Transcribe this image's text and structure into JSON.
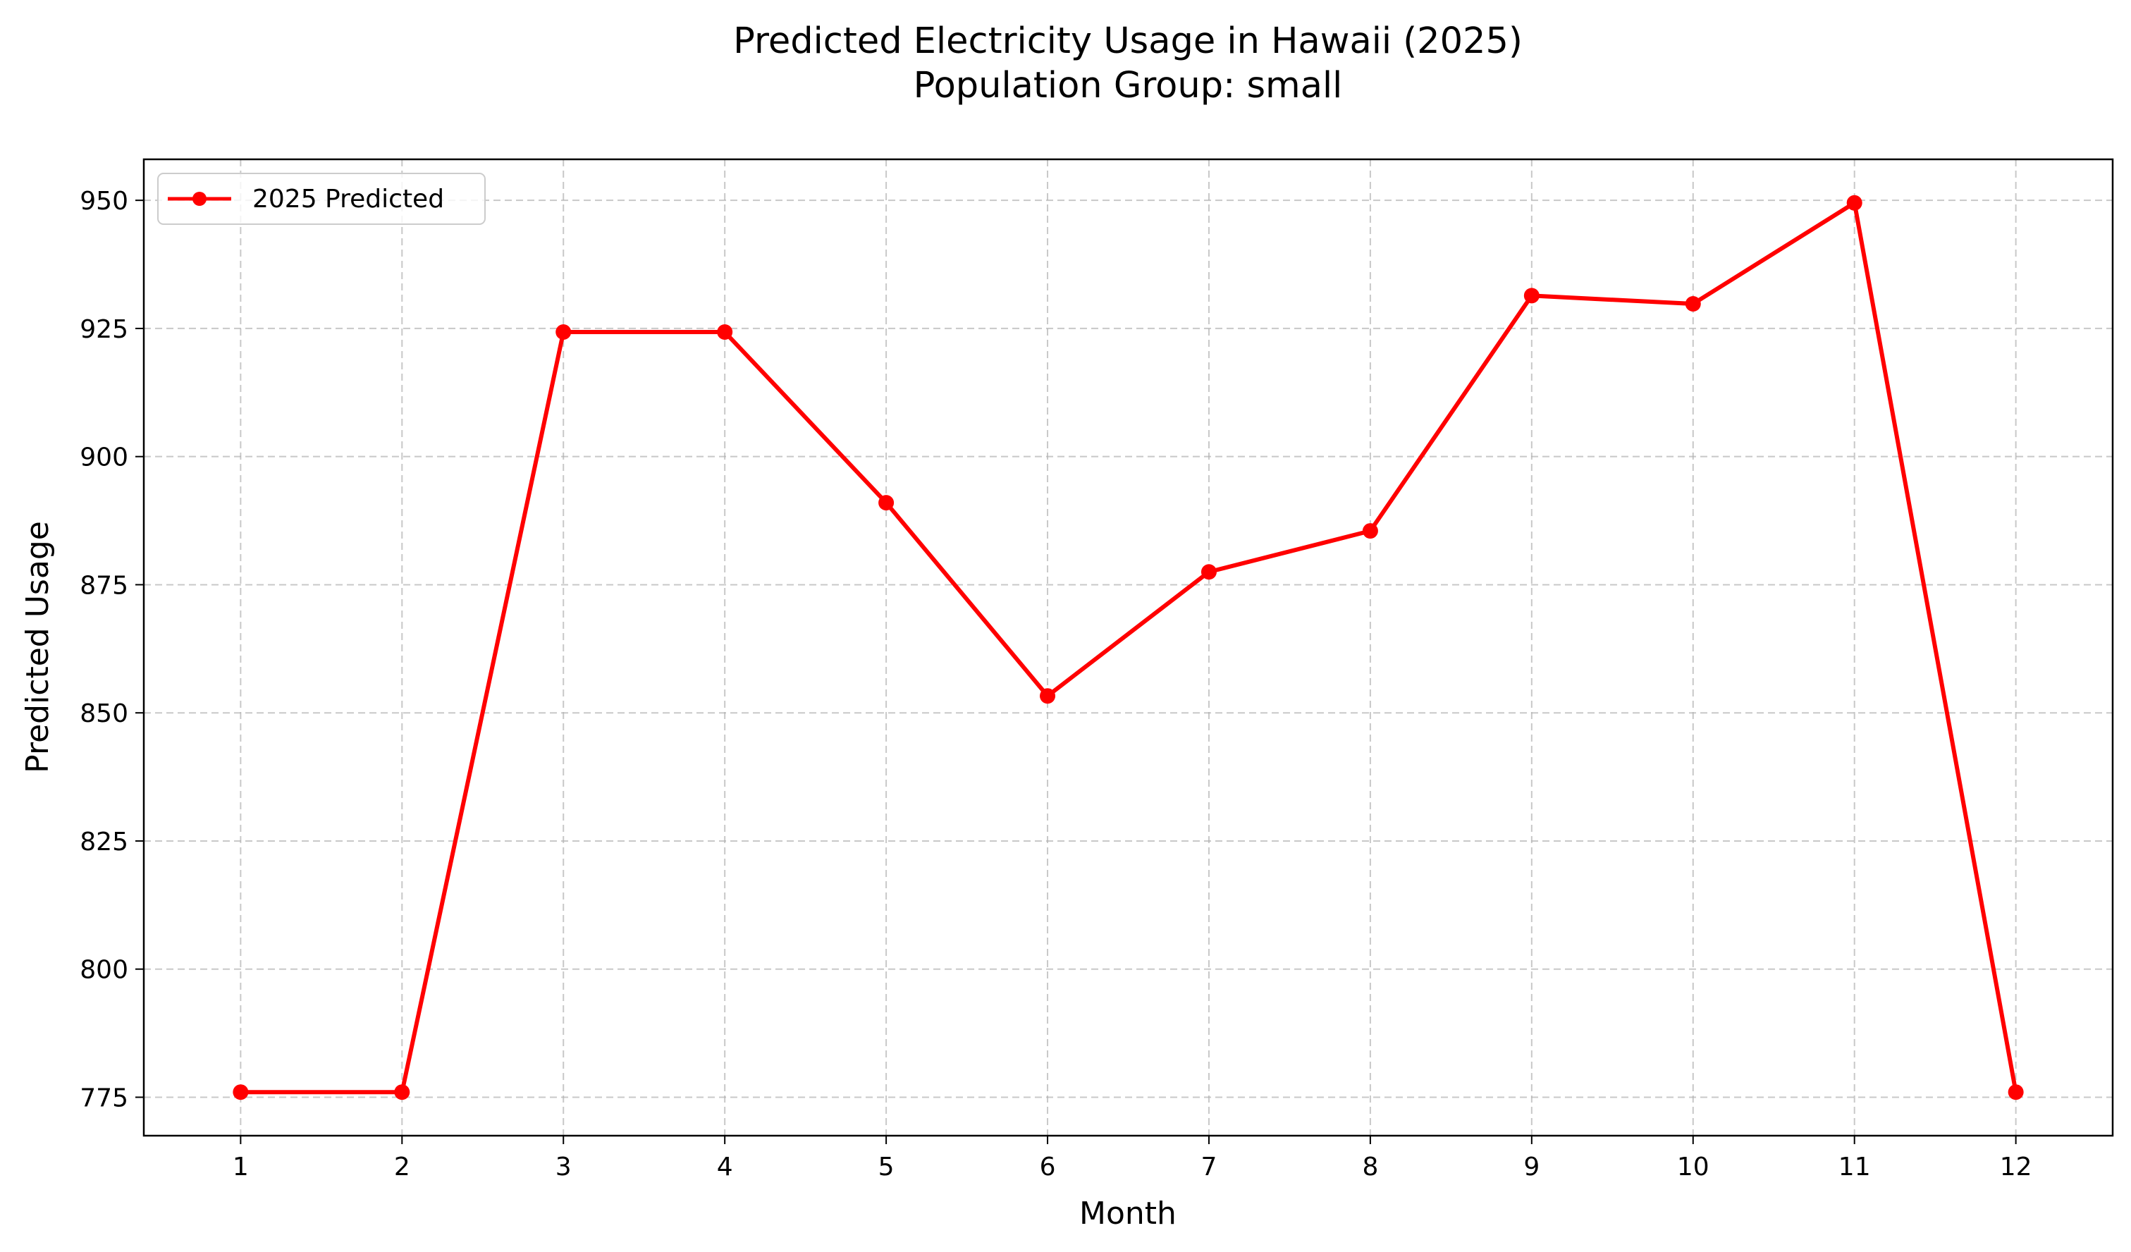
{
  "chart_data": {
    "type": "line",
    "title": "Predicted Electricity Usage in Hawaii (2025)",
    "subtitle": "Population Group: small",
    "xlabel": "Month",
    "ylabel": "Predicted Usage",
    "x": [
      1,
      2,
      3,
      4,
      5,
      6,
      7,
      8,
      9,
      10,
      11,
      12
    ],
    "x_tick_labels": [
      "1",
      "2",
      "3",
      "4",
      "5",
      "6",
      "7",
      "8",
      "9",
      "10",
      "11",
      "12"
    ],
    "y_ticks": [
      775,
      800,
      825,
      850,
      875,
      900,
      925,
      950
    ],
    "y_tick_labels": [
      "775",
      "800",
      "825",
      "850",
      "875",
      "900",
      "925",
      "950"
    ],
    "xlim": [
      0.4,
      12.6
    ],
    "ylim": [
      767.5,
      958
    ],
    "grid": true,
    "grid_style": "dashed",
    "legend_position": "upper-left",
    "series": [
      {
        "name": "2025 Predicted",
        "color": "#ff0000",
        "marker": "circle",
        "values": [
          776,
          776,
          924.3,
          924.3,
          891,
          853.3,
          877.5,
          885.5,
          931.4,
          929.8,
          949.5,
          776
        ]
      }
    ]
  }
}
